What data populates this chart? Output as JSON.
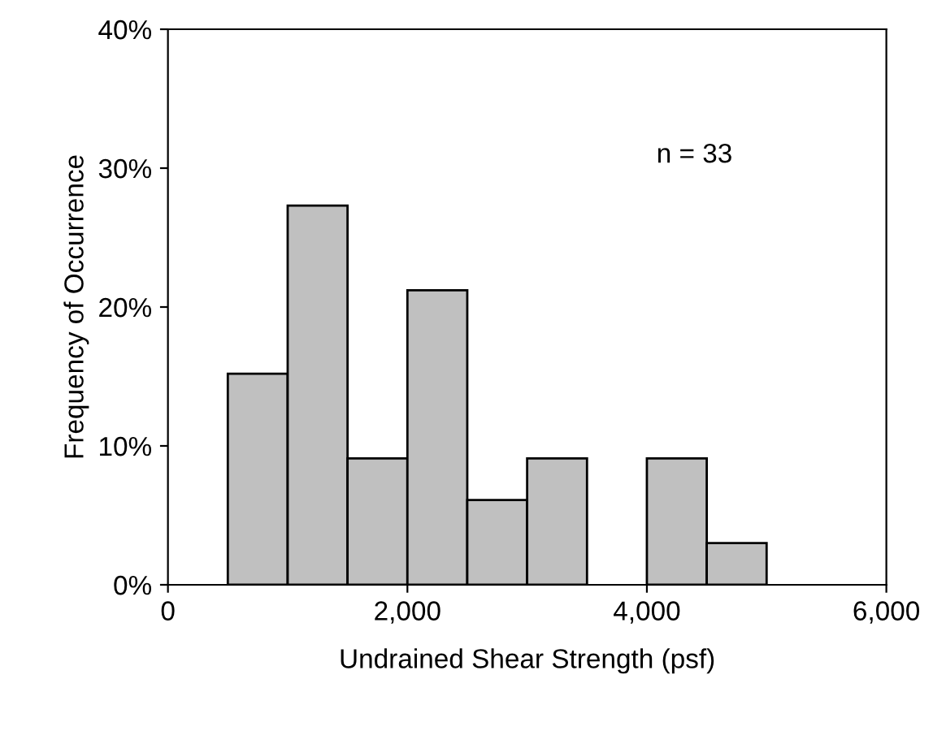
{
  "chart_data": {
    "type": "histogram",
    "xlabel": "Undrained Shear Strength (psf)",
    "ylabel": "Frequency of Occurrence",
    "bins": [
      500,
      1000,
      1500,
      2000,
      2500,
      3000,
      3500,
      4000,
      4500,
      5000
    ],
    "values": [
      15.2,
      27.3,
      9.1,
      21.2,
      6.1,
      9.1,
      0,
      9.1,
      3.0
    ],
    "color": "#c0c0c0",
    "xlim": [
      0,
      6000
    ],
    "xticks": [
      0,
      {
        "value": 2000,
        "label": "2,000"
      },
      {
        "value": 4000,
        "label": "4,000"
      },
      {
        "value": 6000,
        "label": "6,000"
      }
    ],
    "ylim": [
      0,
      40
    ],
    "yticks": [
      {
        "value": 0,
        "label": "0%"
      },
      {
        "value": 10,
        "label": "10%"
      },
      {
        "value": 20,
        "label": "20%"
      },
      {
        "value": 30,
        "label": "30%"
      },
      {
        "value": 40,
        "label": "40%"
      }
    ],
    "annotations": [
      "n = 33"
    ],
    "grid": false,
    "legend": false
  }
}
